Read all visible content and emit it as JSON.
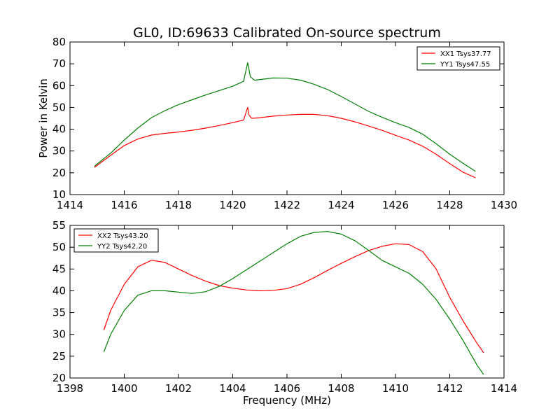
{
  "figure": {
    "title": "GL0, ID:69633 Calibrated On-source spectrum",
    "xlabel": "Frequency (MHz)",
    "ylabel": "Power in Kelvin"
  },
  "chart_data": [
    {
      "type": "line",
      "title": "GL0, ID:69633 Calibrated On-source spectrum",
      "ylabel": "Power in Kelvin",
      "xlim": [
        1414,
        1430
      ],
      "ylim": [
        10,
        80
      ],
      "xticks": [
        1414,
        1416,
        1418,
        1420,
        1422,
        1424,
        1426,
        1428,
        1430
      ],
      "yticks": [
        10,
        20,
        30,
        40,
        50,
        60,
        70,
        80
      ],
      "legend_position": "top-right",
      "grid": false,
      "series": [
        {
          "name": "XX1 Tsys37.77",
          "color": "#ff0000",
          "x": [
            1414.9,
            1415.5,
            1416.0,
            1416.5,
            1417.0,
            1417.5,
            1418.0,
            1418.5,
            1419.0,
            1419.5,
            1420.0,
            1420.4,
            1420.55,
            1420.6,
            1420.7,
            1421.0,
            1421.5,
            1422.0,
            1422.5,
            1423.0,
            1423.5,
            1424.0,
            1424.5,
            1425.0,
            1425.5,
            1426.0,
            1426.5,
            1427.0,
            1427.5,
            1428.0,
            1428.5,
            1428.95
          ],
          "y": [
            22.5,
            28.0,
            32.5,
            35.5,
            37.3,
            38.1,
            38.7,
            39.5,
            40.5,
            41.7,
            43.0,
            44.2,
            50.0,
            46.5,
            45.0,
            45.3,
            46.0,
            46.5,
            46.8,
            46.8,
            46.2,
            45.0,
            43.4,
            41.5,
            39.5,
            37.2,
            35.0,
            32.2,
            28.5,
            24.2,
            20.2,
            17.7
          ]
        },
        {
          "name": "YY1 Tsys47.55",
          "color": "#007f00",
          "x": [
            1414.9,
            1415.5,
            1416.0,
            1416.5,
            1417.0,
            1417.5,
            1418.0,
            1418.5,
            1419.0,
            1419.5,
            1420.0,
            1420.4,
            1420.55,
            1420.65,
            1420.8,
            1421.0,
            1421.5,
            1422.0,
            1422.5,
            1423.0,
            1423.5,
            1424.0,
            1424.5,
            1425.0,
            1425.5,
            1426.0,
            1426.5,
            1427.0,
            1427.5,
            1428.0,
            1428.5,
            1428.95
          ],
          "y": [
            23.0,
            29.0,
            35.0,
            40.5,
            45.3,
            48.5,
            51.3,
            53.5,
            55.7,
            57.7,
            59.7,
            62.0,
            70.5,
            64.0,
            62.5,
            62.8,
            63.5,
            63.4,
            62.5,
            60.6,
            58.2,
            55.0,
            51.6,
            48.2,
            45.5,
            43.0,
            40.8,
            37.7,
            33.3,
            28.5,
            24.3,
            20.7
          ]
        }
      ]
    },
    {
      "type": "line",
      "xlabel": "Frequency (MHz)",
      "xlim": [
        1398,
        1414
      ],
      "ylim": [
        20,
        55
      ],
      "xticks": [
        1398,
        1400,
        1402,
        1404,
        1406,
        1408,
        1410,
        1412,
        1414
      ],
      "yticks": [
        20,
        25,
        30,
        35,
        40,
        45,
        50,
        55
      ],
      "legend_position": "top-left",
      "grid": false,
      "series": [
        {
          "name": "XX2 Tsys43.20",
          "color": "#ff0000",
          "x": [
            1399.25,
            1399.5,
            1400.0,
            1400.5,
            1401.0,
            1401.5,
            1402.0,
            1402.5,
            1403.0,
            1403.5,
            1404.0,
            1404.5,
            1405.0,
            1405.5,
            1406.0,
            1406.5,
            1407.0,
            1407.5,
            1408.0,
            1408.5,
            1409.0,
            1409.5,
            1410.0,
            1410.5,
            1411.0,
            1411.5,
            1412.0,
            1412.5,
            1413.0,
            1413.25
          ],
          "y": [
            31.0,
            35.5,
            41.5,
            45.5,
            47.0,
            46.5,
            45.0,
            43.5,
            42.2,
            41.2,
            40.6,
            40.2,
            40.0,
            40.1,
            40.5,
            41.5,
            43.0,
            44.7,
            46.3,
            47.8,
            49.2,
            50.2,
            50.8,
            50.6,
            49.0,
            45.0,
            38.5,
            33.0,
            28.0,
            25.8
          ]
        },
        {
          "name": "YY2 Tsys42.20",
          "color": "#007f00",
          "x": [
            1399.25,
            1399.5,
            1400.0,
            1400.5,
            1401.0,
            1401.5,
            1402.0,
            1402.5,
            1403.0,
            1403.5,
            1404.0,
            1404.5,
            1405.0,
            1405.5,
            1406.0,
            1406.5,
            1407.0,
            1407.5,
            1408.0,
            1408.5,
            1409.0,
            1409.5,
            1410.0,
            1410.5,
            1411.0,
            1411.5,
            1412.0,
            1412.5,
            1413.0,
            1413.25
          ],
          "y": [
            26.0,
            30.0,
            35.5,
            39.0,
            40.0,
            40.0,
            39.7,
            39.4,
            39.8,
            41.0,
            42.8,
            44.8,
            46.8,
            48.8,
            50.8,
            52.5,
            53.4,
            53.6,
            53.0,
            51.5,
            49.3,
            47.0,
            45.5,
            44.0,
            41.5,
            38.0,
            33.5,
            28.5,
            23.0,
            20.8
          ]
        }
      ]
    }
  ]
}
